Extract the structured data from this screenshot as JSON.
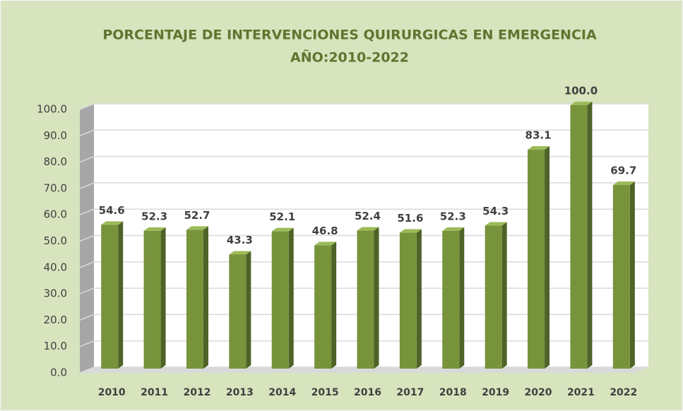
{
  "chart_data": {
    "type": "bar",
    "title": "PORCENTAJE DE INTERVENCIONES QUIRURGICAS EN EMERGENCIA",
    "subtitle": "AÑO:2010-2022",
    "categories": [
      "2010",
      "2011",
      "2012",
      "2013",
      "2014",
      "2015",
      "2016",
      "2017",
      "2018",
      "2019",
      "2020",
      "2021",
      "2022"
    ],
    "values": [
      54.6,
      52.3,
      52.7,
      43.3,
      52.1,
      46.8,
      52.4,
      51.6,
      52.3,
      54.3,
      83.1,
      100,
      69.7
    ],
    "value_labels": [
      "54.6",
      "52.3",
      "52.7",
      "43.3",
      "52.1",
      "46.8",
      "52.4",
      "51.6",
      "52.3",
      "54.3",
      "83.1",
      "100.0",
      "69.7"
    ],
    "color": "#77933c",
    "ylim": [
      0,
      100
    ],
    "yticks": [
      {
        "value": 0,
        "label": "0.0"
      },
      {
        "value": 10,
        "label": "10.0"
      },
      {
        "value": 20,
        "label": "20.0"
      },
      {
        "value": 30,
        "label": "30.0"
      },
      {
        "value": 40,
        "label": "40.0"
      },
      {
        "value": 50,
        "label": "50.0"
      },
      {
        "value": 60,
        "label": "60.0"
      },
      {
        "value": 70,
        "label": "70.0"
      },
      {
        "value": 80,
        "label": "80.0"
      },
      {
        "value": 90,
        "label": "90.0"
      },
      {
        "value": 100,
        "label": "100.0"
      }
    ],
    "grid": true
  }
}
